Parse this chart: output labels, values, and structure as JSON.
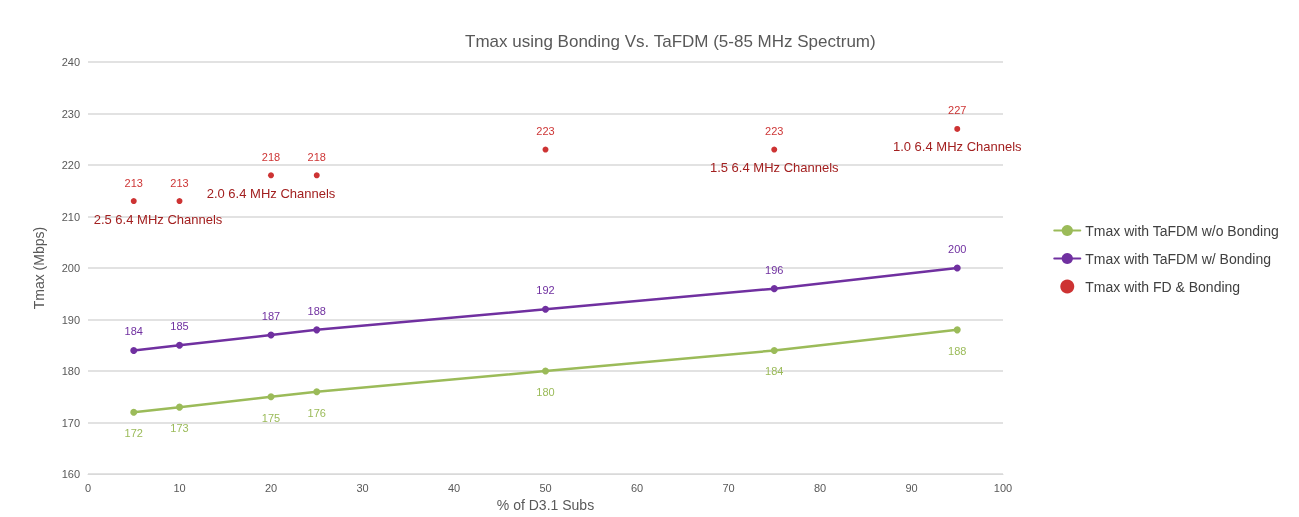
{
  "chart_data": {
    "type": "line",
    "title": "Tmax using Bonding Vs. TaFDM (5-85 MHz Spectrum)",
    "xlabel": "% of D3.1 Subs",
    "ylabel": "Tmax (Mbps)",
    "x": [
      5,
      10,
      20,
      25,
      50,
      75,
      95
    ],
    "series": [
      {
        "name": "Tmax with TaFDM w/o Bonding",
        "color": "#9bbb59",
        "values": [
          172,
          173,
          175,
          176,
          180,
          184,
          188
        ]
      },
      {
        "name": "Tmax with TaFDM w/ Bonding",
        "color": "#7030a0",
        "values": [
          184,
          185,
          187,
          188,
          192,
          196,
          200
        ]
      },
      {
        "name": "Tmax with FD & Bonding",
        "type": "scatter",
        "color": "#c00000",
        "values": [
          213,
          213,
          218,
          218,
          223,
          223,
          227
        ]
      }
    ],
    "annotations": [
      {
        "text": "2.5 6.4 MHz Channels",
        "x": 5,
        "y": 213
      },
      {
        "text": "2.0 6.4 MHz Channels",
        "x": 20,
        "y": 218
      },
      {
        "text": "1.5 6.4 MHz Channels",
        "x": 75,
        "y": 223
      },
      {
        "text": "1.0 6.4 MHz Channels",
        "x": 95,
        "y": 227
      }
    ],
    "xlim": [
      0,
      100
    ],
    "xticks": [
      0,
      10,
      20,
      30,
      40,
      50,
      60,
      70,
      80,
      90,
      100
    ],
    "ylim": [
      160,
      240
    ],
    "yticks": [
      160,
      170,
      180,
      190,
      200,
      210,
      220,
      230,
      240
    ],
    "grid": "y",
    "legend": "right",
    "marker": "circle",
    "data_labels": true
  }
}
